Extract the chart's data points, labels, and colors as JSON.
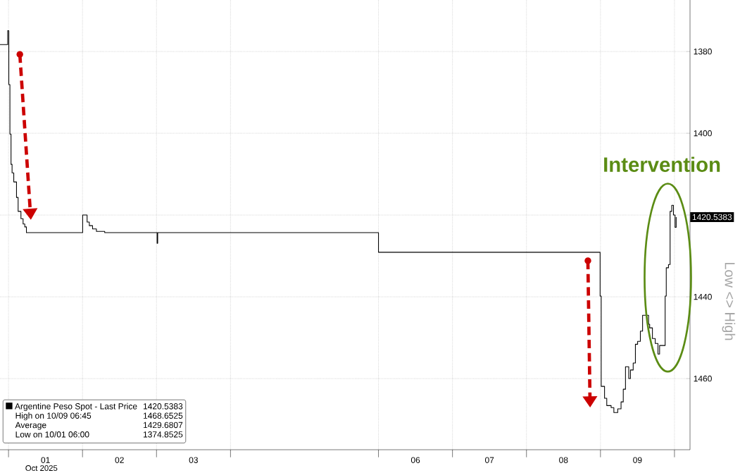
{
  "chart_data": {
    "type": "step",
    "xlabel": "Oct 2025",
    "ylabel": "Low <> High",
    "x": [
      0.885,
      0.989,
      1.004,
      1.019,
      1.034,
      1.048,
      1.071,
      1.108,
      1.13,
      1.168,
      1.197,
      1.22,
      1.242,
      2.002,
      2.062,
      2.092,
      2.136,
      2.188,
      2.3,
      3.008,
      3.016,
      6.0,
      8.995,
      9.01,
      9.055,
      9.085,
      9.144,
      9.181,
      9.233,
      9.278,
      9.308,
      9.338,
      9.382,
      9.405,
      9.442,
      9.472,
      9.502,
      9.539,
      9.569,
      9.65,
      9.665,
      9.702,
      9.74,
      9.777,
      9.799,
      9.874,
      9.889,
      9.919,
      9.941,
      9.963,
      9.986,
      10.008,
      10.023
    ],
    "series": [
      {
        "name": "Argentine Peso Spot - Last Price",
        "color": "#000000",
        "values": [
          1378.3,
          1374.9,
          1388.1,
          1400.2,
          1407.6,
          1409.7,
          1411.9,
          1415.7,
          1419.1,
          1420.9,
          1422.2,
          1422.9,
          1424.3,
          1420.0,
          1421.7,
          1422.6,
          1423.4,
          1424.0,
          1424.3,
          1426.9,
          1424.3,
          1429.1,
          1439.8,
          1461.9,
          1464.8,
          1466.6,
          1467.1,
          1468.3,
          1467.4,
          1465.7,
          1462.6,
          1457.1,
          1460.0,
          1457.9,
          1456.2,
          1451.6,
          1450.9,
          1448.4,
          1444.5,
          1446.7,
          1447.6,
          1450.2,
          1451.4,
          1454.0,
          1451.9,
          1439.8,
          1432.9,
          1432.1,
          1419.1,
          1417.6,
          1420.0,
          1423.0,
          1420.5
        ]
      }
    ],
    "xlim": [
      0.885,
      10.21
    ],
    "ylim": [
      1477.4,
      1367.4
    ],
    "xticks": [
      {
        "value": 1,
        "label": null
      },
      {
        "value": 1.5,
        "label": "01"
      },
      {
        "value": 2,
        "label": null
      },
      {
        "value": 2.5,
        "label": "02"
      },
      {
        "value": 3,
        "label": null
      },
      {
        "value": 3.5,
        "label": "03"
      },
      {
        "value": 4,
        "label": null
      },
      {
        "value": 6,
        "label": null
      },
      {
        "value": 6.5,
        "label": "06"
      },
      {
        "value": 7,
        "label": null
      },
      {
        "value": 7.5,
        "label": "07"
      },
      {
        "value": 8,
        "label": null
      },
      {
        "value": 8.5,
        "label": "08"
      },
      {
        "value": 9,
        "label": null
      },
      {
        "value": 9.5,
        "label": "09"
      },
      {
        "value": 10,
        "label": null
      }
    ],
    "yticks": [
      1380,
      1400,
      1420,
      1440,
      1460
    ],
    "grid": true,
    "legend": "bottom left",
    "annotations": [
      "1420.5383",
      "1420.5383",
      "High on 10/09 06:45",
      "1468.6525",
      "Average",
      "1429.6807",
      "Low on 10/01 06:00",
      "1374.8525",
      "Intervention"
    ]
  }
}
